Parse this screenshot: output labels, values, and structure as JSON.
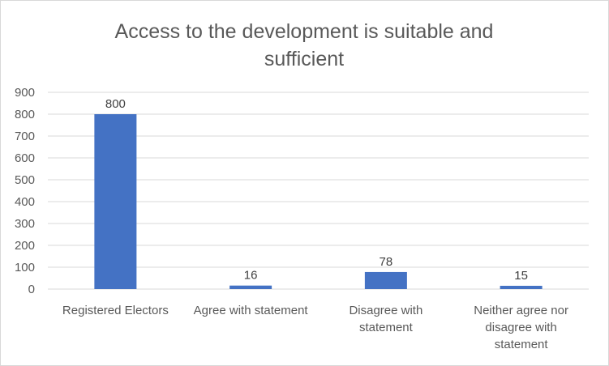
{
  "chart_data": {
    "type": "bar",
    "title_lines": [
      "Access to the development is suitable and",
      "sufficient"
    ],
    "categories": [
      [
        "Registered Electors"
      ],
      [
        "Agree with statement"
      ],
      [
        "Disagree with",
        "statement"
      ],
      [
        "Neither agree nor",
        "disagree with",
        "statement"
      ]
    ],
    "values": [
      800,
      16,
      78,
      15
    ],
    "data_labels": [
      "800",
      "16",
      "78",
      "15"
    ],
    "ylim": [
      0,
      900
    ],
    "yticks": [
      0,
      100,
      200,
      300,
      400,
      500,
      600,
      700,
      800,
      900
    ],
    "xlabel": "",
    "ylabel": "",
    "grid": true,
    "legend": "none",
    "bar_color": "#4472c4"
  }
}
